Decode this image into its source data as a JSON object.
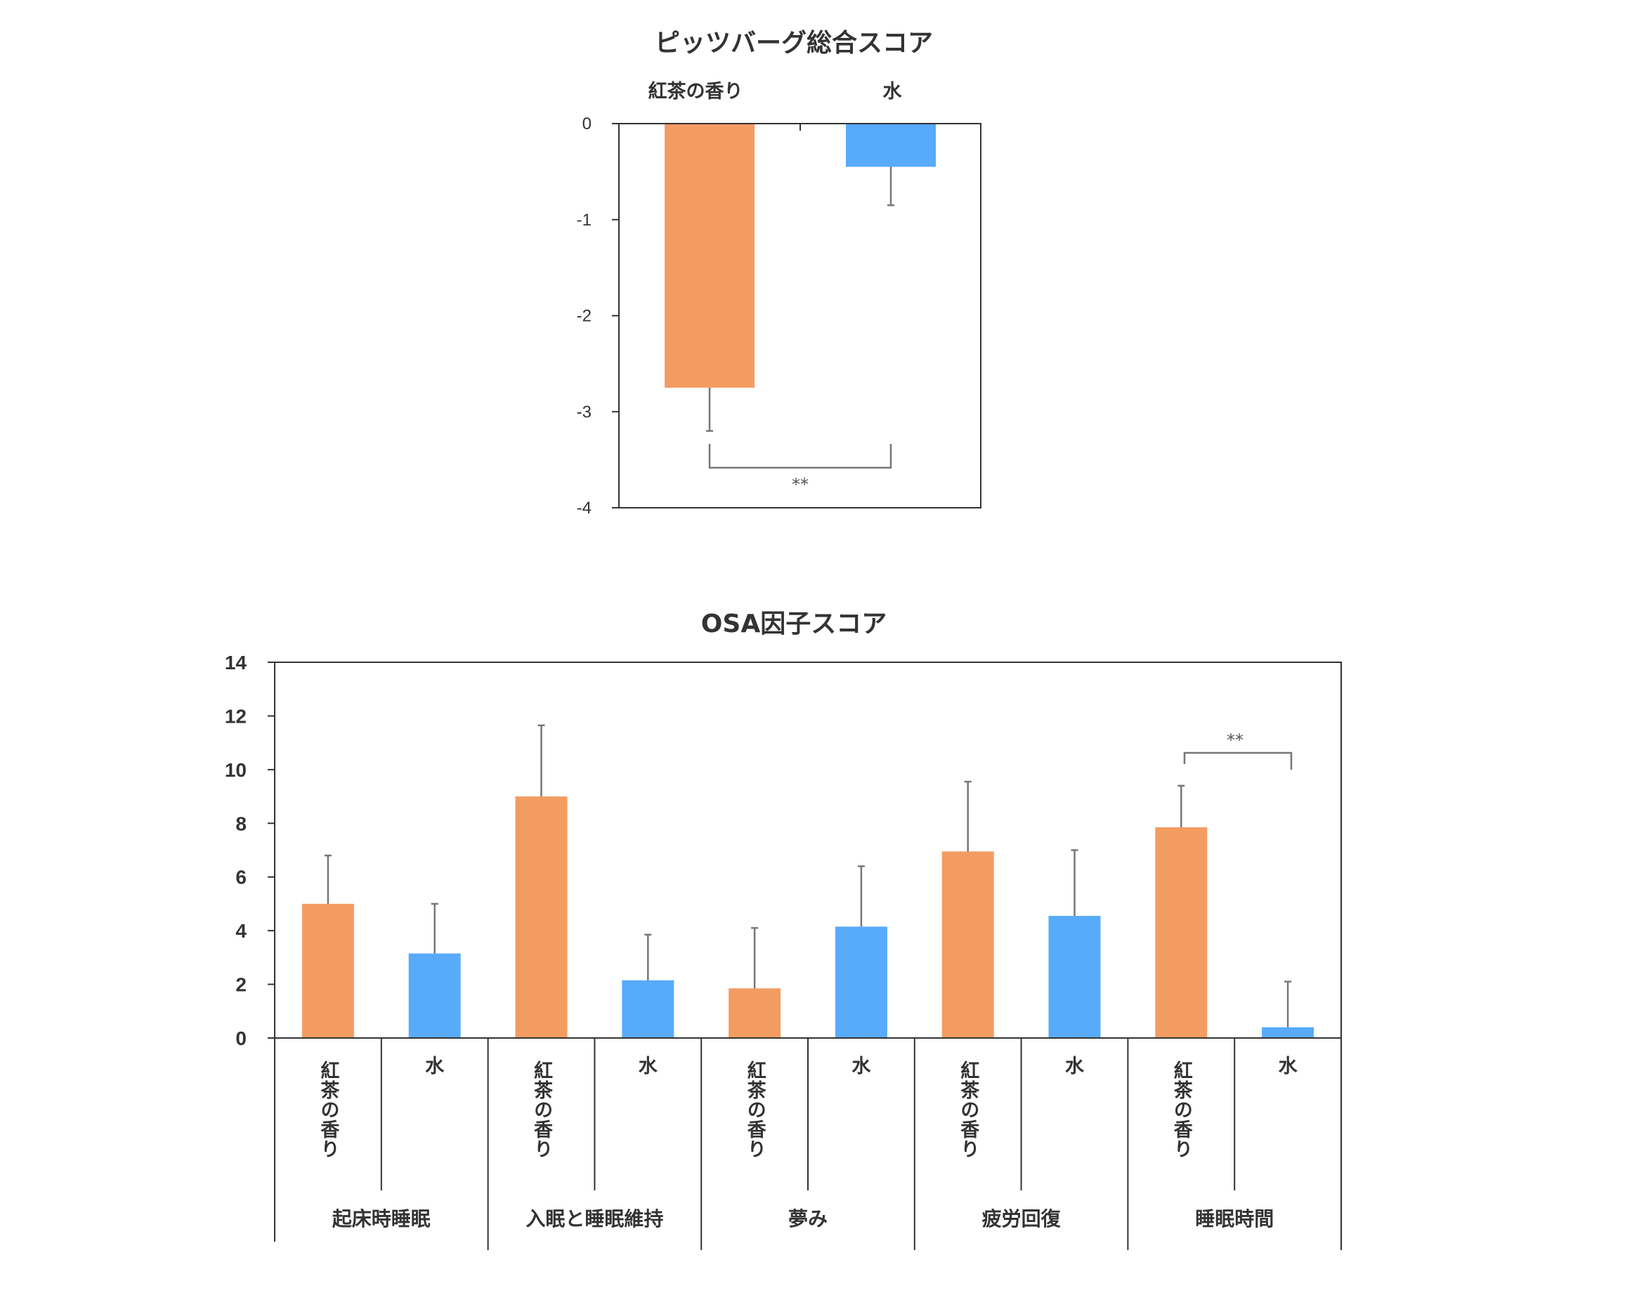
{
  "chart_data": [
    {
      "type": "bar",
      "title": "ピッツバーグ総合スコア",
      "categories": [
        "紅茶の香り",
        "水"
      ],
      "values": [
        -2.75,
        -0.45
      ],
      "errors": [
        0.45,
        0.4
      ],
      "ylim": [
        -4,
        0
      ],
      "yticks": [
        "0",
        "-1",
        "-2",
        "-3",
        "-4"
      ],
      "colors": [
        "#F39C62",
        "#58ABFA"
      ],
      "significance": "**"
    },
    {
      "type": "bar",
      "title": "OSA因子スコア",
      "bar_labels": [
        "紅茶の香り",
        "水",
        "紅茶の香り",
        "水",
        "紅茶の香り",
        "水",
        "紅茶の香り",
        "水",
        "紅茶の香り",
        "水"
      ],
      "groups": [
        "起床時睡眠",
        "入眠と睡眠維持",
        "夢み",
        "疲労回復",
        "睡眠時間"
      ],
      "values": [
        5.0,
        3.15,
        9.0,
        2.15,
        1.85,
        4.15,
        6.95,
        4.55,
        7.85,
        0.4
      ],
      "errors": [
        1.8,
        1.85,
        2.65,
        1.7,
        2.25,
        2.25,
        2.6,
        2.45,
        1.55,
        1.7
      ],
      "ylim": [
        0,
        14
      ],
      "yticks": [
        "0",
        "2",
        "4",
        "6",
        "8",
        "10",
        "12",
        "14"
      ],
      "colors": [
        "#F39C62",
        "#58ABFA"
      ],
      "significance": "**"
    }
  ]
}
